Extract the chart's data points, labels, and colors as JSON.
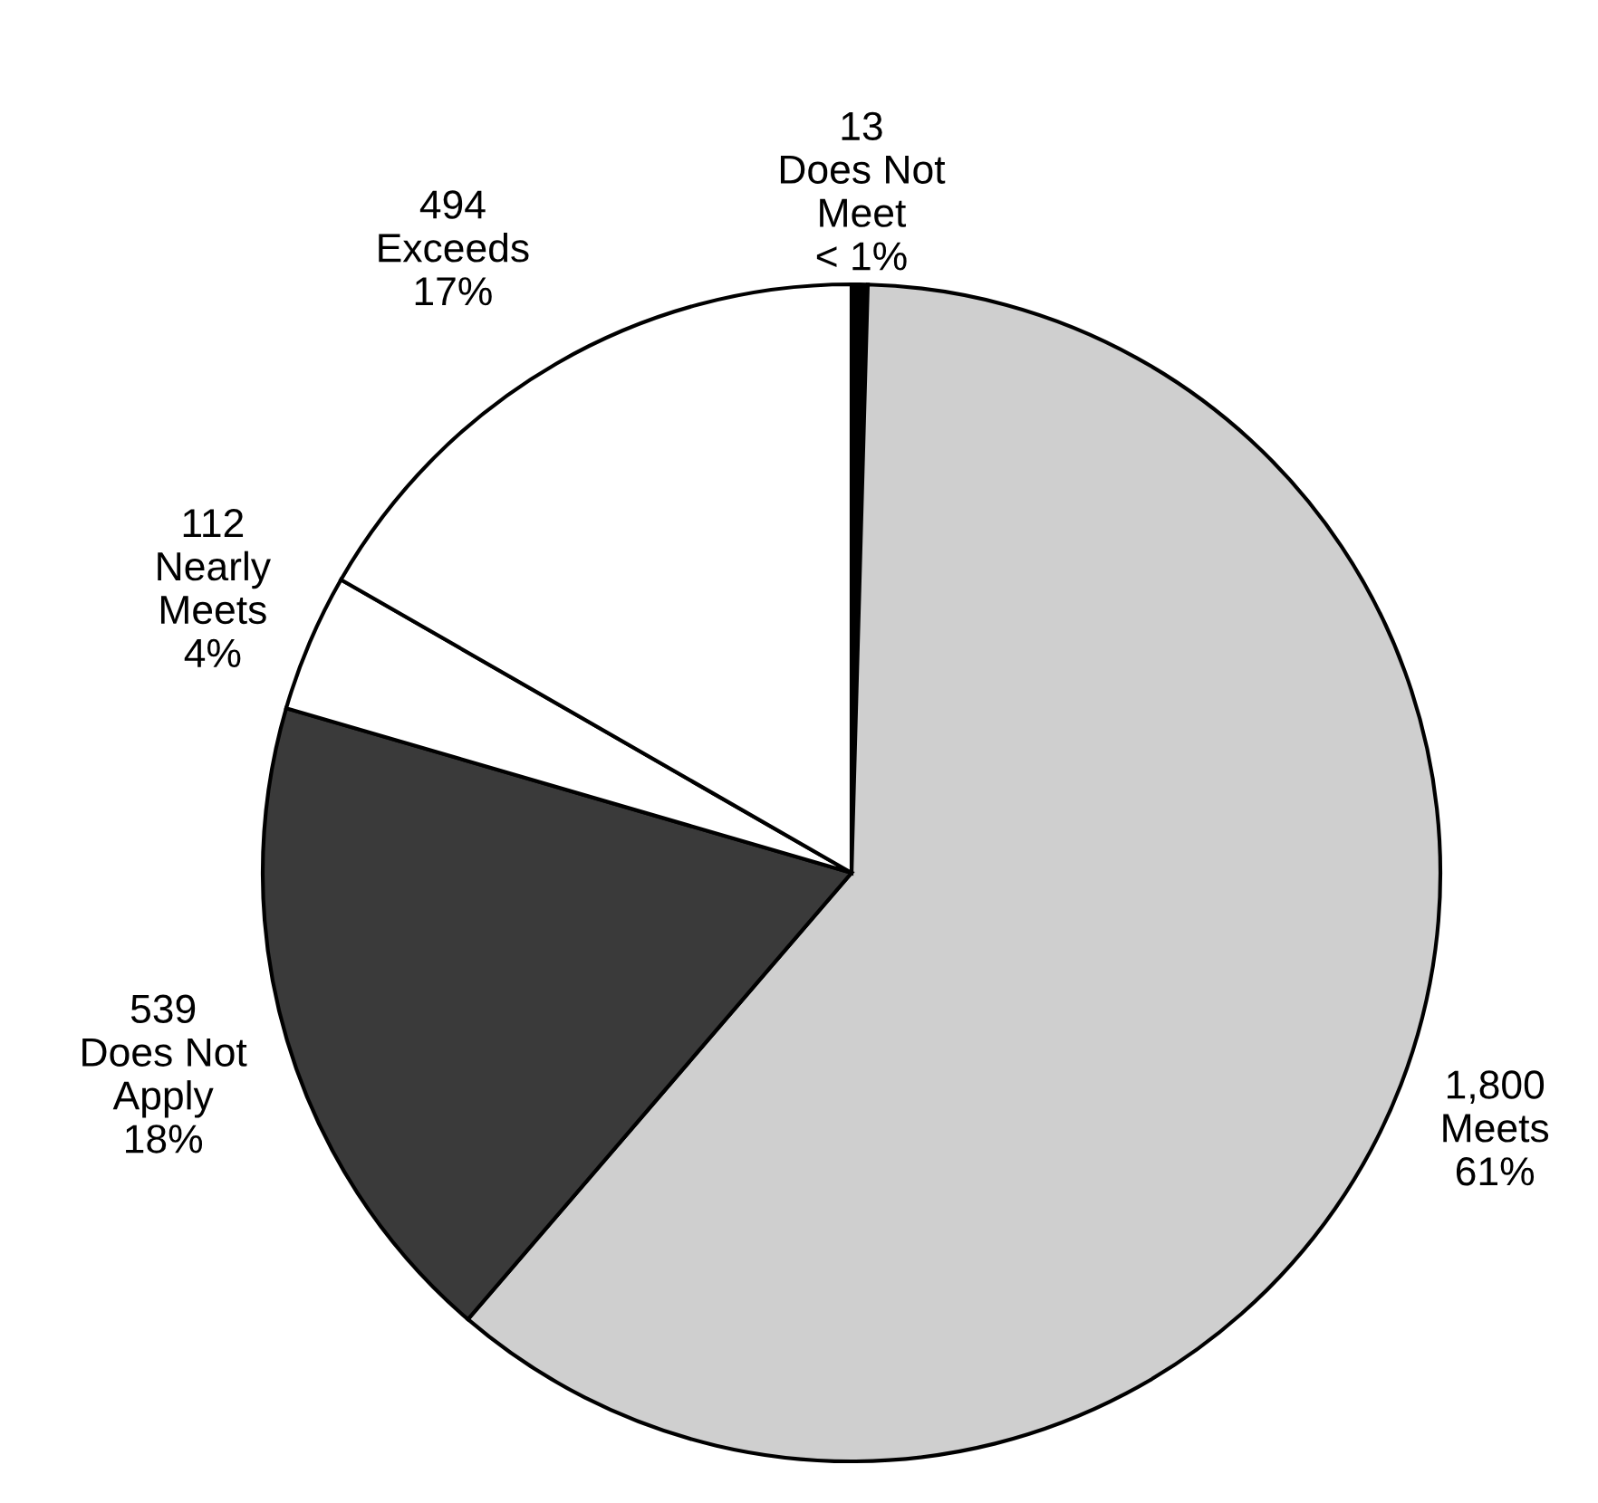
{
  "chart_data": {
    "type": "pie",
    "categories": [
      "Does Not\nMeet",
      "Meets",
      "Does Not\nApply",
      "Nearly\nMeets",
      "Exceeds"
    ],
    "values": [
      13,
      1800,
      539,
      112,
      494
    ],
    "colors": [
      "#000000",
      "#cfcfcf",
      "#3a3a3a",
      "#ffffff",
      "#ffffff"
    ],
    "value_labels": [
      "13",
      "1,800",
      "539",
      "112",
      "494"
    ],
    "annotations": [
      {
        "text": "< 1%",
        "x": "Does Not\nMeet"
      },
      {
        "text": "61%",
        "x": "Meets"
      },
      {
        "text": "18%",
        "x": "Does Not\nApply"
      },
      {
        "text": "4%",
        "x": "Nearly\nMeets"
      },
      {
        "text": "17%",
        "x": "Exceeds"
      }
    ]
  }
}
